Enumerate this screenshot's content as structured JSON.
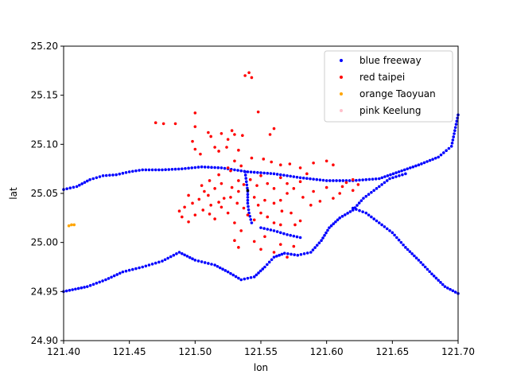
{
  "chart_data": {
    "type": "scatter",
    "xlabel": "lon",
    "ylabel": "lat",
    "xlim": [
      121.4,
      121.7
    ],
    "ylim": [
      24.9,
      25.2
    ],
    "xticks": [
      "121.40",
      "121.45",
      "121.50",
      "121.55",
      "121.60",
      "121.65",
      "121.70"
    ],
    "yticks": [
      "24.90",
      "24.95",
      "25.00",
      "25.05",
      "25.10",
      "25.15",
      "25.20"
    ],
    "grid": false,
    "legend_position": "top-right",
    "series": [
      {
        "name": "blue freeway",
        "color": "#0000ff",
        "polylines": [
          [
            [
              121.4,
              25.054
            ],
            [
              121.41,
              25.057
            ],
            [
              121.42,
              25.064
            ],
            [
              121.43,
              25.068
            ],
            [
              121.44,
              25.069
            ],
            [
              121.45,
              25.072
            ],
            [
              121.46,
              25.074
            ],
            [
              121.475,
              25.074
            ],
            [
              121.49,
              25.075
            ],
            [
              121.505,
              25.077
            ],
            [
              121.52,
              25.076
            ],
            [
              121.54,
              25.072
            ],
            [
              121.56,
              25.07
            ],
            [
              121.58,
              25.066
            ],
            [
              121.6,
              25.063
            ],
            [
              121.62,
              25.063
            ],
            [
              121.64,
              25.065
            ],
            [
              121.655,
              25.072
            ],
            [
              121.67,
              25.079
            ],
            [
              121.685,
              25.087
            ],
            [
              121.695,
              25.098
            ],
            [
              121.7,
              25.13
            ]
          ],
          [
            [
              121.4,
              24.95
            ],
            [
              121.418,
              24.955
            ],
            [
              121.432,
              24.962
            ],
            [
              121.445,
              24.97
            ],
            [
              121.46,
              24.975
            ],
            [
              121.475,
              24.981
            ],
            [
              121.488,
              24.99
            ],
            [
              121.5,
              24.982
            ],
            [
              121.515,
              24.977
            ],
            [
              121.525,
              24.97
            ],
            [
              121.535,
              24.962
            ],
            [
              121.545,
              24.965
            ],
            [
              121.553,
              24.975
            ],
            [
              121.56,
              24.985
            ],
            [
              121.568,
              24.989
            ],
            [
              121.578,
              24.987
            ],
            [
              121.588,
              24.99
            ],
            [
              121.596,
              25.002
            ],
            [
              121.602,
              25.015
            ],
            [
              121.61,
              25.025
            ],
            [
              121.62,
              25.033
            ],
            [
              121.628,
              25.045
            ],
            [
              121.638,
              25.055
            ],
            [
              121.648,
              25.065
            ],
            [
              121.66,
              25.07
            ]
          ],
          [
            [
              121.538,
              25.072
            ],
            [
              121.539,
              25.062
            ],
            [
              121.54,
              25.052
            ],
            [
              121.54,
              25.04
            ],
            [
              121.541,
              25.03
            ],
            [
              121.543,
              25.02
            ]
          ],
          [
            [
              121.55,
              25.015
            ],
            [
              121.56,
              25.012
            ],
            [
              121.57,
              25.008
            ],
            [
              121.58,
              25.005
            ]
          ],
          [
            [
              121.62,
              25.035
            ],
            [
              121.63,
              25.03
            ],
            [
              121.64,
              25.02
            ],
            [
              121.65,
              25.01
            ],
            [
              121.66,
              24.995
            ],
            [
              121.67,
              24.982
            ],
            [
              121.68,
              24.968
            ],
            [
              121.69,
              24.955
            ],
            [
              121.7,
              24.948
            ]
          ]
        ]
      },
      {
        "name": "red taipei",
        "color": "#ff0000",
        "points": [
          [
            121.5,
            25.132
          ],
          [
            121.538,
            25.17
          ],
          [
            121.541,
            25.173
          ],
          [
            121.543,
            25.168
          ],
          [
            121.548,
            25.133
          ],
          [
            121.56,
            25.116
          ],
          [
            121.47,
            25.122
          ],
          [
            121.476,
            25.121
          ],
          [
            121.485,
            25.121
          ],
          [
            121.5,
            25.118
          ],
          [
            121.51,
            25.112
          ],
          [
            121.512,
            25.108
          ],
          [
            121.52,
            25.111
          ],
          [
            121.525,
            25.105
          ],
          [
            121.528,
            25.114
          ],
          [
            121.53,
            25.11
          ],
          [
            121.536,
            25.109
          ],
          [
            121.557,
            25.11
          ],
          [
            121.498,
            25.103
          ],
          [
            121.5,
            25.095
          ],
          [
            121.504,
            25.09
          ],
          [
            121.515,
            25.097
          ],
          [
            121.518,
            25.093
          ],
          [
            121.524,
            25.097
          ],
          [
            121.533,
            25.094
          ],
          [
            121.543,
            25.086
          ],
          [
            121.552,
            25.085
          ],
          [
            121.558,
            25.082
          ],
          [
            121.565,
            25.079
          ],
          [
            121.572,
            25.08
          ],
          [
            121.58,
            25.076
          ],
          [
            121.59,
            25.081
          ],
          [
            121.6,
            25.083
          ],
          [
            121.605,
            25.079
          ],
          [
            121.62,
            25.064
          ],
          [
            121.615,
            25.061
          ],
          [
            121.612,
            25.057
          ],
          [
            121.62,
            25.053
          ],
          [
            121.624,
            25.059
          ],
          [
            121.6,
            25.056
          ],
          [
            121.59,
            25.052
          ],
          [
            121.582,
            25.046
          ],
          [
            121.57,
            25.05
          ],
          [
            121.565,
            25.043
          ],
          [
            121.56,
            25.04
          ],
          [
            121.553,
            25.043
          ],
          [
            121.548,
            25.038
          ],
          [
            121.545,
            25.046
          ],
          [
            121.533,
            25.052
          ],
          [
            121.528,
            25.056
          ],
          [
            121.52,
            25.06
          ],
          [
            121.515,
            25.055
          ],
          [
            121.51,
            25.048
          ],
          [
            121.503,
            25.044
          ],
          [
            121.498,
            25.04
          ],
          [
            121.492,
            25.036
          ],
          [
            121.488,
            25.032
          ],
          [
            121.49,
            25.026
          ],
          [
            121.495,
            25.021
          ],
          [
            121.5,
            25.028
          ],
          [
            121.506,
            25.033
          ],
          [
            121.511,
            25.029
          ],
          [
            121.515,
            25.024
          ],
          [
            121.52,
            25.036
          ],
          [
            121.525,
            25.03
          ],
          [
            121.53,
            25.02
          ],
          [
            121.535,
            25.012
          ],
          [
            121.53,
            25.002
          ],
          [
            121.533,
            24.995
          ],
          [
            121.545,
            25.001
          ],
          [
            121.55,
            24.993
          ],
          [
            121.553,
            25.006
          ],
          [
            121.56,
            24.99
          ],
          [
            121.565,
            24.998
          ],
          [
            121.57,
            24.985
          ],
          [
            121.575,
            24.996
          ],
          [
            121.576,
            25.018
          ],
          [
            121.573,
            25.03
          ],
          [
            121.566,
            25.032
          ],
          [
            121.58,
            25.022
          ],
          [
            121.588,
            25.038
          ],
          [
            121.595,
            25.042
          ],
          [
            121.605,
            25.045
          ],
          [
            121.61,
            25.05
          ],
          [
            121.527,
            25.073
          ],
          [
            121.533,
            25.063
          ],
          [
            121.537,
            25.059
          ],
          [
            121.542,
            25.064
          ],
          [
            121.547,
            25.058
          ],
          [
            121.55,
            25.068
          ],
          [
            121.555,
            25.06
          ],
          [
            121.56,
            25.055
          ],
          [
            121.565,
            25.066
          ],
          [
            121.57,
            25.06
          ],
          [
            121.575,
            25.055
          ],
          [
            121.58,
            25.062
          ],
          [
            121.585,
            25.07
          ],
          [
            121.522,
            25.045
          ],
          [
            121.518,
            25.041
          ],
          [
            121.512,
            25.038
          ],
          [
            121.507,
            25.052
          ],
          [
            121.495,
            25.048
          ],
          [
            121.527,
            25.046
          ],
          [
            121.532,
            25.04
          ],
          [
            121.537,
            25.035
          ],
          [
            121.54,
            25.028
          ],
          [
            121.545,
            25.023
          ],
          [
            121.55,
            25.03
          ],
          [
            121.555,
            25.026
          ],
          [
            121.56,
            25.02
          ],
          [
            121.565,
            25.018
          ],
          [
            121.535,
            25.078
          ],
          [
            121.53,
            25.083
          ],
          [
            121.525,
            25.076
          ],
          [
            121.518,
            25.069
          ],
          [
            121.511,
            25.063
          ],
          [
            121.505,
            25.058
          ]
        ]
      },
      {
        "name": "orange Taoyuan",
        "color": "#ffa500",
        "points": [
          [
            121.404,
            25.017
          ],
          [
            121.406,
            25.018
          ],
          [
            121.408,
            25.018
          ]
        ]
      },
      {
        "name": "pink Keelung",
        "color": "#ffc0cb",
        "points": []
      }
    ],
    "extra_points": [
      {
        "color": "#000000",
        "points": [
          [
            121.54,
            25.053
          ]
        ]
      }
    ]
  }
}
